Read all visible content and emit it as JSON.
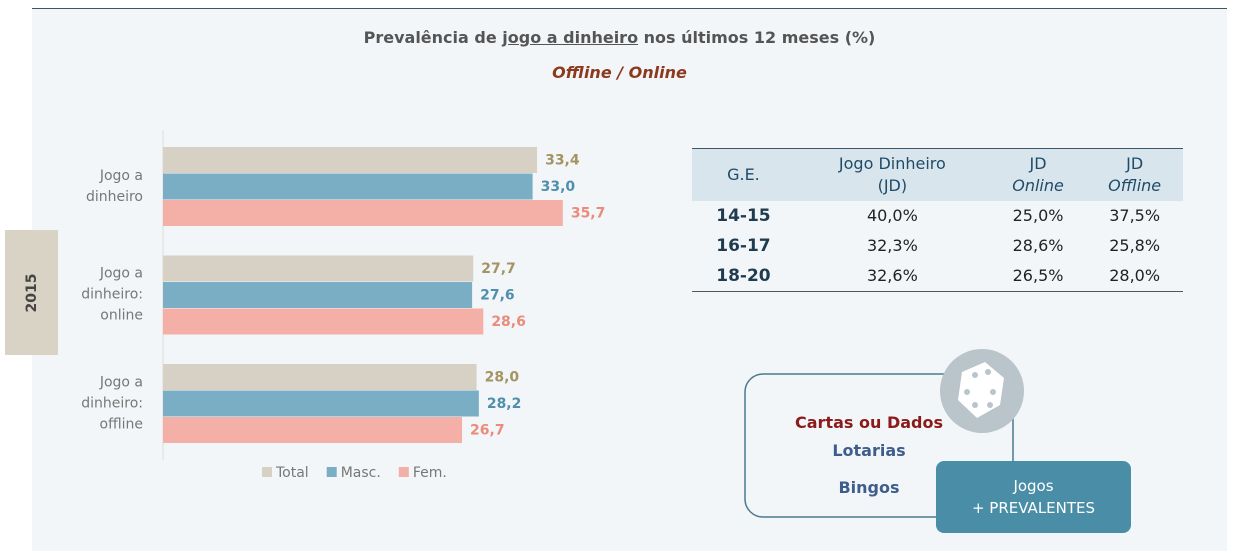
{
  "header": {
    "title": [
      "Prevalência de ",
      "jogo a dinheiro",
      " nos últimos 12 meses (%)"
    ],
    "subtitle": "Offline / Online",
    "year": "2015"
  },
  "chart_data": {
    "type": "bar",
    "orientation": "horizontal",
    "categories": [
      "Jogo a dinheiro",
      "Jogo a dinheiro: online",
      "Jogo a dinheiro: offline"
    ],
    "series": [
      {
        "name": "Total",
        "color": "#d6d1c4",
        "label_color": "#a39463",
        "values": [
          33.4,
          27.7,
          28.0
        ],
        "value_labels": [
          "33,4",
          "27,7",
          "28,0"
        ]
      },
      {
        "name": "Masc.",
        "color": "#7aaec5",
        "label_color": "#4f8fac",
        "values": [
          33.0,
          27.6,
          28.2
        ],
        "value_labels": [
          "33,0",
          "27,6",
          "28,2"
        ]
      },
      {
        "name": "Fem.",
        "color": "#f4b0a6",
        "label_color": "#ea8b7c",
        "values": [
          35.7,
          28.6,
          26.7
        ],
        "value_labels": [
          "35,7",
          "28,6",
          "26,7"
        ]
      }
    ],
    "xlim": [
      0,
      37.5
    ]
  },
  "table": {
    "header": [
      [
        "G.E."
      ],
      [
        "Jogo Dinheiro",
        "(JD)"
      ],
      [
        "JD",
        "Online"
      ],
      [
        "JD",
        "Offline"
      ]
    ],
    "rows": [
      [
        "14-15",
        "40,0%",
        "25,0%",
        "37,5%"
      ],
      [
        "16-17",
        "32,3%",
        "28,6%",
        "25,8%"
      ],
      [
        "18-20",
        "32,6%",
        "26,5%",
        "28,0%"
      ]
    ]
  },
  "diagram": {
    "items": [
      "Cartas ou Dados",
      "Lotarias",
      "Bingos"
    ],
    "box": [
      "Jogos",
      "+ PREVALENTES"
    ]
  }
}
